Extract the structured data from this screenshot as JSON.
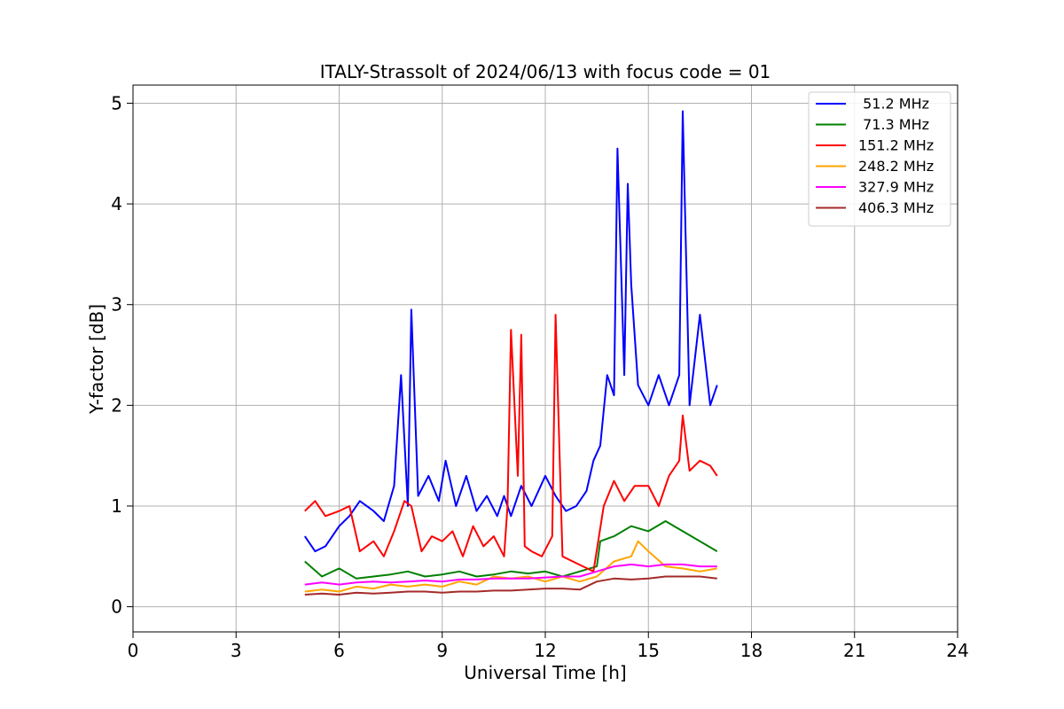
{
  "chart_data": {
    "type": "line",
    "title": "ITALY-Strassolt of 2024/06/13 with focus code = 01",
    "xlabel": "Universal Time [h]",
    "ylabel": "Y-factor [dB]",
    "xlim": [
      0,
      24
    ],
    "ylim": [
      -0.25,
      5.18
    ],
    "xticks": [
      "0",
      "3",
      "6",
      "9",
      "12",
      "15",
      "18",
      "21",
      "24"
    ],
    "yticks": [
      "0",
      "1",
      "2",
      "3",
      "4",
      "5"
    ],
    "grid": true,
    "legend_position": "top-right",
    "series": [
      {
        "name": " 51.2 MHz",
        "color": "#0000ff",
        "x": [
          5.0,
          5.3,
          5.6,
          6.0,
          6.3,
          6.6,
          7.0,
          7.3,
          7.6,
          7.8,
          8.0,
          8.1,
          8.3,
          8.6,
          8.9,
          9.1,
          9.4,
          9.7,
          10.0,
          10.3,
          10.6,
          10.8,
          11.0,
          11.3,
          11.6,
          12.0,
          12.3,
          12.6,
          12.9,
          13.2,
          13.4,
          13.6,
          13.8,
          14.0,
          14.1,
          14.3,
          14.4,
          14.5,
          14.7,
          15.0,
          15.3,
          15.6,
          15.9,
          16.0,
          16.2,
          16.5,
          16.8,
          17.0
        ],
        "values": [
          0.7,
          0.55,
          0.6,
          0.8,
          0.9,
          1.05,
          0.95,
          0.85,
          1.2,
          2.3,
          1.0,
          2.95,
          1.1,
          1.3,
          1.05,
          1.45,
          1.0,
          1.3,
          0.95,
          1.1,
          0.9,
          1.1,
          0.9,
          1.2,
          1.0,
          1.3,
          1.1,
          0.95,
          1.0,
          1.15,
          1.45,
          1.6,
          2.3,
          2.1,
          4.55,
          2.3,
          4.2,
          3.2,
          2.2,
          2.0,
          2.3,
          2.0,
          2.3,
          4.92,
          2.0,
          2.9,
          2.0,
          2.2
        ]
      },
      {
        "name": " 71.3 MHz",
        "color": "#008000",
        "x": [
          5.0,
          5.5,
          6.0,
          6.5,
          7.0,
          7.5,
          8.0,
          8.5,
          9.0,
          9.5,
          10.0,
          10.5,
          11.0,
          11.5,
          12.0,
          12.5,
          13.0,
          13.5,
          13.6,
          14.0,
          14.5,
          15.0,
          15.5,
          16.0,
          16.5,
          17.0
        ],
        "values": [
          0.45,
          0.3,
          0.38,
          0.28,
          0.3,
          0.32,
          0.35,
          0.3,
          0.32,
          0.35,
          0.3,
          0.32,
          0.35,
          0.33,
          0.35,
          0.3,
          0.35,
          0.4,
          0.65,
          0.7,
          0.8,
          0.75,
          0.85,
          0.75,
          0.65,
          0.55
        ]
      },
      {
        "name": "151.2 MHz",
        "color": "#ff0000",
        "x": [
          5.0,
          5.3,
          5.6,
          6.0,
          6.3,
          6.6,
          7.0,
          7.3,
          7.6,
          7.9,
          8.1,
          8.4,
          8.7,
          9.0,
          9.3,
          9.6,
          9.9,
          10.2,
          10.5,
          10.8,
          10.9,
          11.0,
          11.2,
          11.3,
          11.4,
          11.6,
          11.9,
          12.2,
          12.3,
          12.5,
          12.8,
          13.1,
          13.4,
          13.7,
          14.0,
          14.3,
          14.6,
          15.0,
          15.3,
          15.6,
          15.9,
          16.0,
          16.2,
          16.5,
          16.8,
          17.0
        ],
        "values": [
          0.95,
          1.05,
          0.9,
          0.95,
          1.0,
          0.55,
          0.65,
          0.5,
          0.75,
          1.05,
          1.0,
          0.55,
          0.7,
          0.65,
          0.75,
          0.5,
          0.8,
          0.6,
          0.7,
          0.5,
          1.0,
          2.75,
          1.3,
          2.7,
          0.6,
          0.55,
          0.5,
          0.7,
          2.9,
          0.5,
          0.45,
          0.4,
          0.35,
          1.0,
          1.25,
          1.05,
          1.2,
          1.2,
          1.0,
          1.3,
          1.45,
          1.9,
          1.35,
          1.45,
          1.4,
          1.3
        ]
      },
      {
        "name": "248.2 MHz",
        "color": "#ffa500",
        "x": [
          5.0,
          5.5,
          6.0,
          6.5,
          7.0,
          7.5,
          8.0,
          8.5,
          9.0,
          9.5,
          10.0,
          10.5,
          11.0,
          11.5,
          12.0,
          12.5,
          13.0,
          13.5,
          14.0,
          14.5,
          14.7,
          15.0,
          15.5,
          16.0,
          16.5,
          17.0
        ],
        "values": [
          0.15,
          0.17,
          0.15,
          0.2,
          0.18,
          0.22,
          0.2,
          0.22,
          0.2,
          0.25,
          0.22,
          0.3,
          0.28,
          0.3,
          0.25,
          0.3,
          0.25,
          0.3,
          0.45,
          0.5,
          0.65,
          0.55,
          0.4,
          0.38,
          0.35,
          0.38
        ]
      },
      {
        "name": "327.9 MHz",
        "color": "#ff00ff",
        "x": [
          5.0,
          5.5,
          6.0,
          6.5,
          7.0,
          7.5,
          8.0,
          8.5,
          9.0,
          9.5,
          10.0,
          10.5,
          11.0,
          11.5,
          12.0,
          12.5,
          13.0,
          13.5,
          14.0,
          14.5,
          15.0,
          15.5,
          16.0,
          16.5,
          17.0
        ],
        "values": [
          0.22,
          0.24,
          0.22,
          0.24,
          0.25,
          0.24,
          0.25,
          0.26,
          0.25,
          0.27,
          0.27,
          0.28,
          0.28,
          0.28,
          0.29,
          0.3,
          0.3,
          0.35,
          0.4,
          0.42,
          0.4,
          0.42,
          0.42,
          0.4,
          0.4
        ]
      },
      {
        "name": "406.3 MHz",
        "color": "#a52a2a",
        "x": [
          5.0,
          5.5,
          6.0,
          6.5,
          7.0,
          7.5,
          8.0,
          8.5,
          9.0,
          9.5,
          10.0,
          10.5,
          11.0,
          11.5,
          12.0,
          12.5,
          13.0,
          13.5,
          14.0,
          14.5,
          15.0,
          15.5,
          16.0,
          16.5,
          17.0
        ],
        "values": [
          0.12,
          0.13,
          0.12,
          0.14,
          0.13,
          0.14,
          0.15,
          0.15,
          0.14,
          0.15,
          0.15,
          0.16,
          0.16,
          0.17,
          0.18,
          0.18,
          0.17,
          0.25,
          0.28,
          0.27,
          0.28,
          0.3,
          0.3,
          0.3,
          0.28
        ]
      }
    ]
  }
}
